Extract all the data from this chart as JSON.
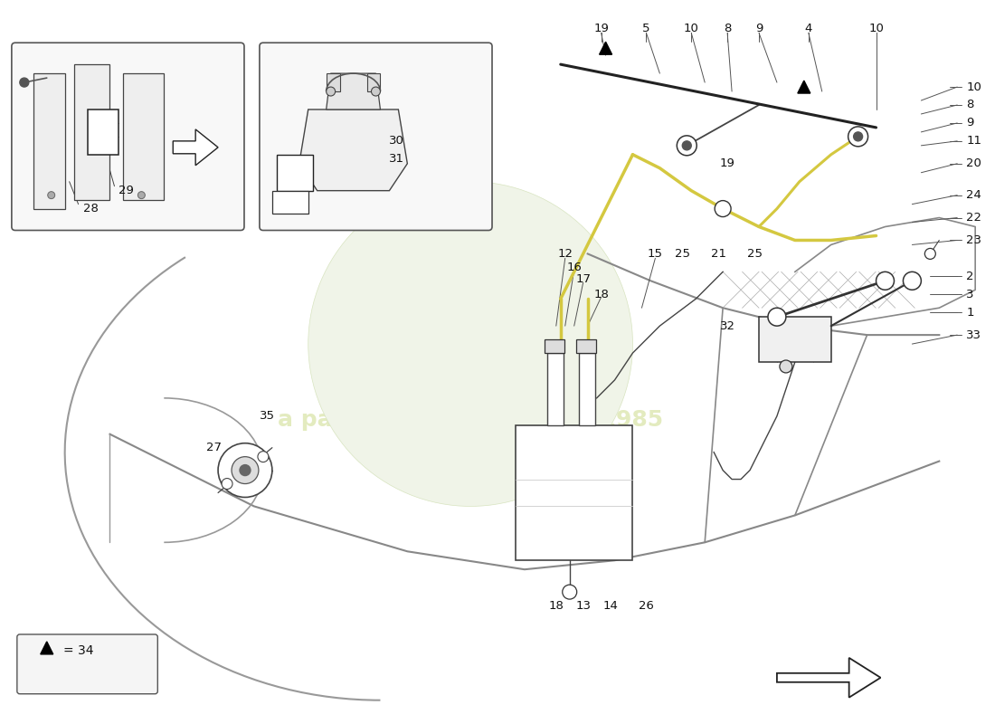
{
  "background_color": "#ffffff",
  "fig_width": 11.0,
  "fig_height": 8.0,
  "watermark_color": "#c8d880",
  "watermark_alpha": 0.5,
  "line_color": "#222222",
  "label_fontsize": 9.5
}
